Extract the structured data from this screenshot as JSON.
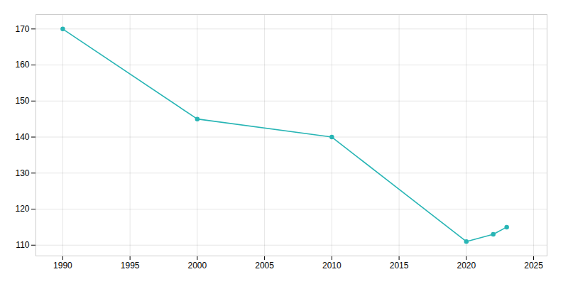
{
  "chart_data": {
    "type": "line",
    "x": [
      1990,
      2000,
      2010,
      2020,
      2022,
      2023
    ],
    "values": [
      170,
      145,
      140,
      111,
      113,
      115
    ],
    "color": "#28B5B5",
    "marker": "circle",
    "xlim": [
      1988,
      2026
    ],
    "ylim": [
      107,
      174
    ],
    "xticks": [
      1990,
      1995,
      2000,
      2005,
      2010,
      2015,
      2020,
      2025
    ],
    "yticks": [
      110,
      120,
      130,
      140,
      150,
      160,
      170
    ],
    "grid": true
  }
}
